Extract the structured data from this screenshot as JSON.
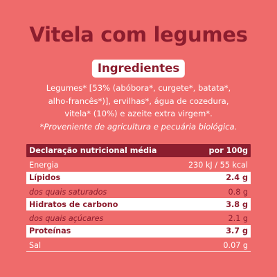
{
  "title": "Vitela com legumes",
  "ingredients_heading": "Ingredientes",
  "ingredients_lines": [
    "Legumes* [53% (abóbora*, curgete*, batata*,",
    "alho-francês*)], ervilhas*, água de cozedura,",
    "vitela* (10%) e azeite extra virgem*."
  ],
  "organic_note": "*Proveniente de agricultura e pecuária biológica.",
  "nutrition": {
    "header_label": "Declaração nutricional média",
    "header_unit": "por 100g",
    "rows": [
      {
        "label": "Energia",
        "value": "230 kJ / 55 kcal"
      },
      {
        "label": "Lípidos",
        "value": "2.4 g"
      },
      {
        "label": "dos quais saturados",
        "value": "0.8 g"
      },
      {
        "label": "Hidratos de carbono",
        "value": "3.8 g"
      },
      {
        "label": "dos quais açúcares",
        "value": "2.1 g"
      },
      {
        "label": "Proteínas",
        "value": "3.7 g"
      },
      {
        "label": "Sal",
        "value": "0.07 g"
      }
    ]
  },
  "colors": {
    "background": "#ef6b6b",
    "brand": "#8c1d2e",
    "white": "#ffffff"
  }
}
